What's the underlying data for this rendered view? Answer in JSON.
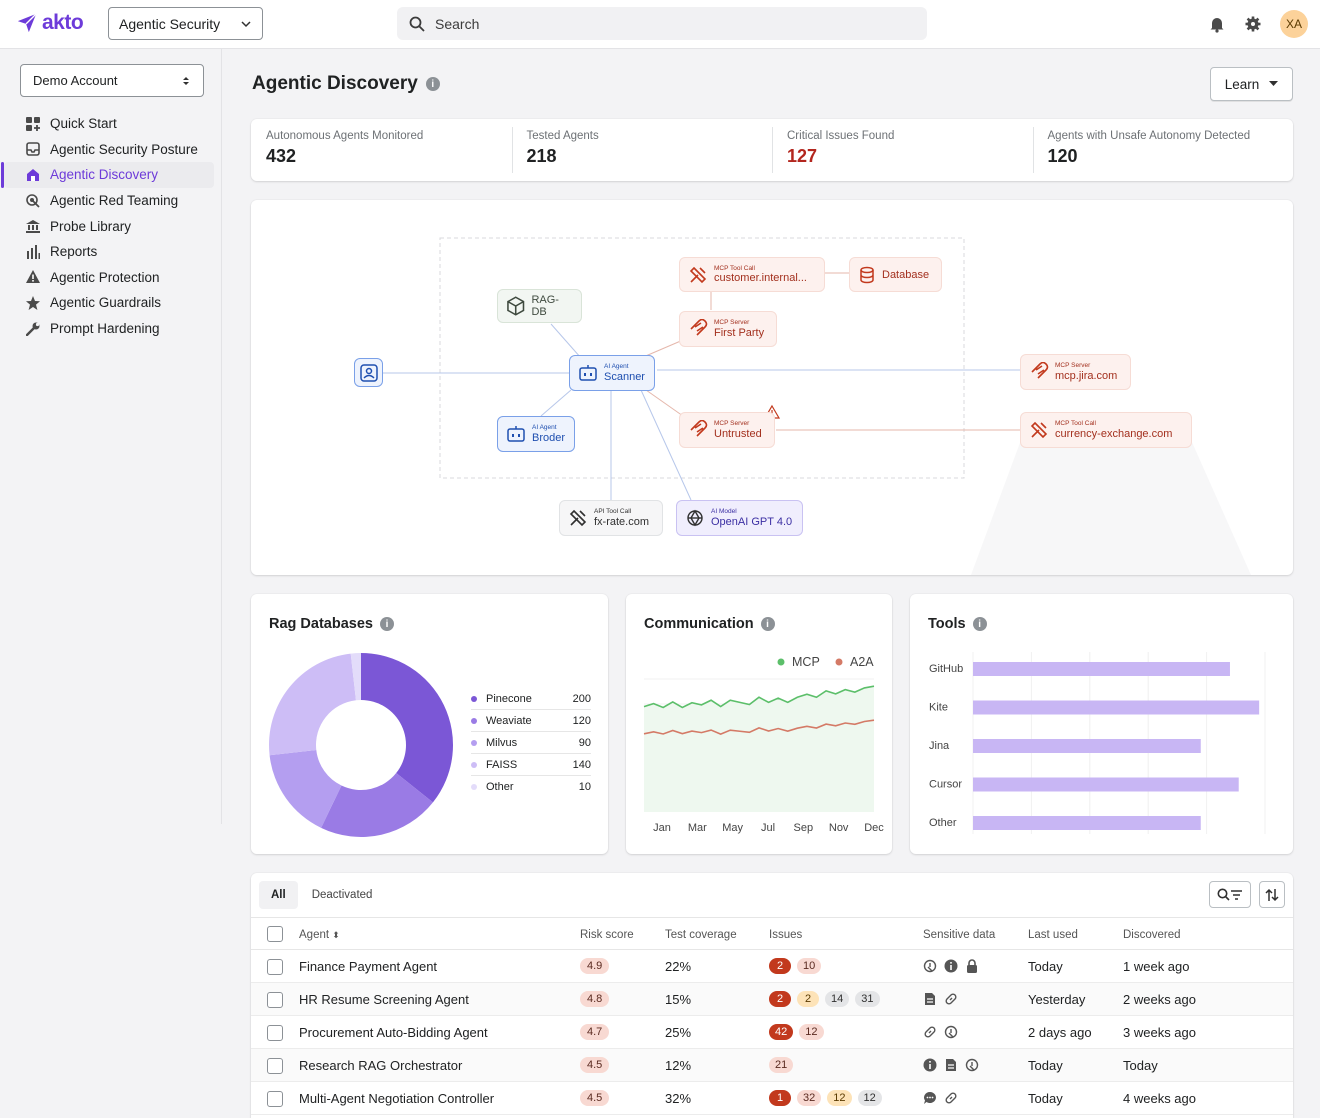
{
  "topbar": {
    "logo": "akto",
    "product": "Agentic Security",
    "search_placeholder": "Search",
    "avatar": "XA"
  },
  "sidebar": {
    "account": "Demo Account",
    "items": [
      {
        "label": "Quick Start",
        "icon": "grid-plus-icon"
      },
      {
        "label": "Agentic Security Posture",
        "icon": "inbox-icon"
      },
      {
        "label": "Agentic Discovery",
        "icon": "home-icon",
        "active": true
      },
      {
        "label": "Agentic Red Teaming",
        "icon": "target-icon"
      },
      {
        "label": "Probe Library",
        "icon": "bank-icon"
      },
      {
        "label": "Reports",
        "icon": "bar-chart-icon"
      },
      {
        "label": "Agentic Protection",
        "icon": "warning-icon"
      },
      {
        "label": "Agentic Guardrails",
        "icon": "star-icon"
      },
      {
        "label": "Prompt Hardening",
        "icon": "wrench-icon"
      }
    ]
  },
  "page": {
    "title": "Agentic Discovery",
    "learn": "Learn"
  },
  "stats": [
    {
      "label": "Autonomous Agents Monitored",
      "value": "432"
    },
    {
      "label": "Tested Agents",
      "value": "218"
    },
    {
      "label": "Critical Issues Found",
      "value": "127",
      "accent": "#b3261e"
    },
    {
      "label": "Agents with Unsafe Autonomy Detected",
      "value": "120"
    }
  ],
  "graph": {
    "nodes": {
      "mcp_call_internal": {
        "type": "MCP Tool Call",
        "name": "customer.internal..."
      },
      "database": {
        "name": "Database"
      },
      "rag_db": {
        "name": "RAG-DB"
      },
      "mcp_first": {
        "type": "MCP Server",
        "name": "First Party"
      },
      "scanner": {
        "type": "AI Agent",
        "name": "Scanner"
      },
      "mcp_jira": {
        "type": "MCP Server",
        "name": "mcp.jira.com"
      },
      "broder": {
        "type": "AI Agent",
        "name": "Broder"
      },
      "mcp_untrusted": {
        "type": "MCP Server",
        "name": "Untrusted"
      },
      "mcp_currency": {
        "type": "MCP Tool Call",
        "name": "currency-exchange.com"
      },
      "api_fx": {
        "type": "API Tool Call",
        "name": "fx-rate.com"
      },
      "openai": {
        "type": "AI Model",
        "name": "OpenAI GPT 4.0"
      }
    }
  },
  "rag": {
    "title": "Rag Databases",
    "chart_data": {
      "type": "pie",
      "categories": [
        "Pinecone",
        "Weaviate",
        "Milvus",
        "FAISS",
        "Other"
      ],
      "values": [
        200,
        120,
        90,
        140,
        10
      ],
      "colors": [
        "#7b57d6",
        "#9a7be5",
        "#b49ef0",
        "#cdbdf6",
        "#e3dcfa"
      ]
    }
  },
  "communication": {
    "title": "Communication",
    "chart_data": {
      "type": "line",
      "x": [
        "Jan",
        "Mar",
        "May",
        "Jul",
        "Sep",
        "Nov",
        "Dec"
      ],
      "series": [
        {
          "name": "MCP",
          "color": "#5cbf6a",
          "values": [
            62,
            63,
            64,
            65,
            67,
            70,
            74
          ]
        },
        {
          "name": "A2A",
          "color": "#d47a66",
          "values": [
            46,
            47,
            47,
            48,
            49,
            51,
            54
          ]
        }
      ],
      "ylim": [
        0,
        100
      ]
    }
  },
  "tools": {
    "title": "Tools",
    "chart_data": {
      "type": "bar",
      "categories": [
        "GitHub",
        "Kite",
        "Jina",
        "Cursor",
        "Other"
      ],
      "values": [
        88,
        98,
        78,
        91,
        78
      ],
      "xlim": [
        0,
        100
      ],
      "color": "#c8b6f4"
    }
  },
  "table": {
    "tabs": [
      "All",
      "Deactivated"
    ],
    "headers": {
      "agent": "Agent",
      "risk": "Risk score",
      "coverage": "Test coverage",
      "issues": "Issues",
      "sensitive": "Sensitive data",
      "last_used": "Last used",
      "discovered": "Discovered"
    },
    "rows": [
      {
        "agent": "Finance Payment Agent",
        "risk": "4.9",
        "coverage": "22%",
        "issues": [
          [
            "crit",
            "2"
          ],
          [
            "high",
            "10"
          ]
        ],
        "sensitive": [
          "fingerprint-icon",
          "info-icon",
          "lock-icon"
        ],
        "last_used": "Today",
        "discovered": "1 week ago"
      },
      {
        "agent": "HR Resume Screening Agent",
        "risk": "4.8",
        "coverage": "15%",
        "issues": [
          [
            "crit",
            "2"
          ],
          [
            "med",
            "2"
          ],
          [
            "low",
            "14"
          ],
          [
            "low",
            "31"
          ]
        ],
        "sensitive": [
          "document-icon",
          "link-icon"
        ],
        "last_used": "Yesterday",
        "discovered": "2 weeks ago"
      },
      {
        "agent": "Procurement Auto-Bidding Agent",
        "risk": "4.7",
        "coverage": "25%",
        "issues": [
          [
            "crit",
            "42"
          ],
          [
            "high",
            "12"
          ]
        ],
        "sensitive": [
          "link-icon",
          "fingerprint-icon"
        ],
        "last_used": "2 days ago",
        "discovered": "3 weeks ago"
      },
      {
        "agent": "Research RAG Orchestrator",
        "risk": "4.5",
        "coverage": "12%",
        "issues": [
          [
            "high",
            "21"
          ]
        ],
        "sensitive": [
          "info-icon",
          "document-icon",
          "fingerprint-icon"
        ],
        "last_used": "Today",
        "discovered": "Today"
      },
      {
        "agent": "Multi-Agent Negotiation Controller",
        "risk": "4.5",
        "coverage": "32%",
        "issues": [
          [
            "crit",
            "1"
          ],
          [
            "high",
            "32"
          ],
          [
            "med",
            "12"
          ],
          [
            "low",
            "12"
          ]
        ],
        "sensitive": [
          "chat-icon",
          "link-icon"
        ],
        "last_used": "Today",
        "discovered": "4 weeks ago"
      }
    ]
  }
}
